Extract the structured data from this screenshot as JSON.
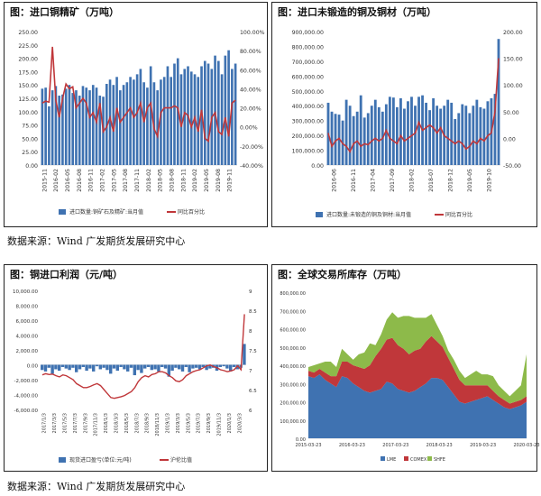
{
  "source_text": "数据来源：Wind  广发期货发展研究中心",
  "panels": [
    {
      "title": "图：进口铜精矿（万吨）",
      "chart_data": {
        "type": "bar+line",
        "y_left_ticks": [
          "0.00",
          "25.00",
          "50.00",
          "75.00",
          "100.00",
          "125.00",
          "150.00",
          "175.00",
          "200.00",
          "225.00",
          "250.00"
        ],
        "y_left_range": [
          0,
          250
        ],
        "y_right_ticks": [
          "-40.00%",
          "-20.00%",
          "0.00%",
          "20.00%",
          "40.00%",
          "60.00%",
          "80.00%",
          "100.00%"
        ],
        "y_right_range": [
          -40,
          100
        ],
        "x_labels": [
          "2015-11",
          "2016-02",
          "2016-05",
          "2016-08",
          "2016-11",
          "2017-02",
          "2017-05",
          "2017-08",
          "2017-11",
          "2018-02",
          "2018-05",
          "2018-08",
          "2018-11",
          "2019-02",
          "2019-05",
          "2019-08",
          "2019-11"
        ],
        "bars": [
          143,
          145,
          110,
          140,
          148,
          130,
          132,
          143,
          150,
          135,
          140,
          130,
          148,
          145,
          140,
          150,
          145,
          130,
          128,
          152,
          160,
          150,
          165,
          140,
          150,
          155,
          165,
          160,
          170,
          180,
          155,
          145,
          185,
          155,
          140,
          160,
          165,
          185,
          165,
          190,
          200,
          170,
          180,
          185,
          175,
          170,
          165,
          185,
          195,
          190,
          180,
          205,
          195,
          170,
          205,
          215,
          180,
          190
        ],
        "line": [
          25,
          27,
          26,
          84,
          28,
          10,
          30,
          45,
          40,
          42,
          20,
          25,
          30,
          25,
          10,
          15,
          5,
          25,
          -5,
          0,
          10,
          -5,
          20,
          5,
          10,
          15,
          20,
          10,
          15,
          25,
          5,
          20,
          25,
          -2,
          -10,
          15,
          20,
          20,
          20,
          22,
          20,
          0,
          15,
          12,
          0,
          10,
          -5,
          18,
          -12,
          -15,
          10,
          15,
          -5,
          -8,
          10,
          -10,
          25,
          28
        ],
        "legend": [
          "进口数量:铜矿石及精矿:当月值",
          "同比百分比"
        ]
      }
    },
    {
      "title": "图：进口未锻造的铜及铜材（万吨）",
      "chart_data": {
        "type": "bar+line",
        "y_left_ticks": [
          "0.00",
          "100,000.00",
          "200,000.00",
          "300,000.00",
          "400,000.00",
          "500,000.00",
          "600,000.00",
          "700,000.00",
          "800,000.00",
          "900,000.00"
        ],
        "y_left_range": [
          0,
          900000
        ],
        "y_right_ticks": [
          "-50.00",
          "0.00",
          "50.00",
          "100.00",
          "150.00",
          "200.00"
        ],
        "y_right_range": [
          -50,
          200
        ],
        "x_labels": [
          "2016-06",
          "2016-11",
          "2017-04",
          "2017-09",
          "2018-02",
          "2018-07",
          "2018-12",
          "2019-05",
          "2019-10"
        ],
        "bars": [
          420000,
          360000,
          345000,
          340000,
          300000,
          440000,
          400000,
          330000,
          360000,
          470000,
          320000,
          350000,
          400000,
          440000,
          390000,
          360000,
          410000,
          460000,
          455000,
          390000,
          450000,
          380000,
          430000,
          460000,
          400000,
          460000,
          470000,
          420000,
          370000,
          450000,
          400000,
          380000,
          400000,
          440000,
          420000,
          310000,
          350000,
          410000,
          400000,
          350000,
          400000,
          440000,
          390000,
          380000,
          430000,
          450000,
          480000,
          850000
        ],
        "line": [
          10,
          -15,
          -5,
          0,
          -10,
          -15,
          -25,
          -10,
          -5,
          -15,
          -10,
          -12,
          -5,
          0,
          -5,
          0,
          15,
          0,
          -5,
          -10,
          5,
          -5,
          0,
          5,
          10,
          30,
          15,
          20,
          25,
          20,
          10,
          20,
          5,
          0,
          -5,
          -10,
          -5,
          -10,
          -20,
          -15,
          -5,
          -10,
          0,
          -5,
          5,
          10,
          50,
          150
        ],
        "legend": [
          "进口数量:未锻造的铜及铜材:当月值",
          "同比百分比"
        ]
      }
    },
    {
      "title": "图：铜进口利润（元/吨）",
      "chart_data": {
        "type": "bar+line",
        "y_left_ticks": [
          "-6,000.00",
          "-4,000.00",
          "-2,000.00",
          "0.00",
          "2,000.00",
          "4,000.00",
          "6,000.00",
          "8,000.00",
          "10,000.00"
        ],
        "y_left_range": [
          -6000,
          10000
        ],
        "y_right_ticks": [
          "6",
          "6.5",
          "7",
          "7.5",
          "8",
          "8.5",
          "9"
        ],
        "y_right_range": [
          6,
          9
        ],
        "x_labels": [
          "2017/1/3",
          "2017/3/3",
          "2017/5/3",
          "2017/7/3",
          "2017/9/3",
          "2017/11/3",
          "2018/1/3",
          "2018/3/3",
          "2018/5/3",
          "2018/7/3",
          "2018/9/3",
          "2018/11/3",
          "2019/1/3",
          "2019/3/3",
          "2019/5/3",
          "2019/7/3",
          "2019/9/3",
          "2019/11/3",
          "2020/1/3",
          "2020/3/3"
        ],
        "bars_profit": [
          -700,
          -900,
          -400,
          -1200,
          -600,
          -800,
          -300,
          -500,
          -700,
          -400,
          -1000,
          -600,
          -300,
          -800,
          -500,
          -900,
          -200,
          -600,
          -400,
          -700,
          -1200,
          -500,
          -800,
          -300,
          -600,
          -900,
          -400,
          -1400,
          -700,
          -1100,
          -500,
          -300,
          -700,
          -600,
          -900,
          -300,
          -500,
          -1600,
          -800,
          -400,
          -600,
          -900,
          -300,
          -1000,
          -500,
          -400,
          -600,
          -300,
          -700,
          -500,
          -400,
          -800,
          -300,
          -200,
          -500,
          -900,
          -300,
          -600,
          -400,
          2800
        ],
        "line_usdcny": [
          6.87,
          6.9,
          6.88,
          6.89,
          6.85,
          6.82,
          6.87,
          6.85,
          6.8,
          6.75,
          6.65,
          6.6,
          6.55,
          6.55,
          6.58,
          6.62,
          6.65,
          6.6,
          6.5,
          6.4,
          6.3,
          6.28,
          6.3,
          6.32,
          6.35,
          6.4,
          6.45,
          6.55,
          6.7,
          6.8,
          6.85,
          6.82,
          6.88,
          6.9,
          6.95,
          6.95,
          6.92,
          6.85,
          6.8,
          6.72,
          6.7,
          6.75,
          6.85,
          6.9,
          6.95,
          6.98,
          7.0,
          7.05,
          7.1,
          7.12,
          7.08,
          7.05,
          7.0,
          6.98,
          6.95,
          6.97,
          7.0,
          7.1,
          7.0,
          8.4
        ],
        "legend": [
          "现货进口盈亏(单位:元/吨)",
          "沪伦比值"
        ]
      }
    },
    {
      "title": "图：全球交易所库存（万吨）",
      "chart_data": {
        "type": "stacked-area",
        "y_ticks": [
          "0.00",
          "100,000.00",
          "200,000.00",
          "300,000.00",
          "400,000.00",
          "500,000.00",
          "600,000.00",
          "700,000.00",
          "800,000.00"
        ],
        "y_range": [
          0,
          800000
        ],
        "x_labels": [
          "2015-03-23",
          "2016-03-23",
          "2017-03-23",
          "2018-03-23",
          "2019-03-23",
          "2020-03-23"
        ],
        "series": [
          {
            "name": "LME",
            "values": [
              340000,
              330000,
              350000,
              320000,
              300000,
              280000,
              340000,
              330000,
              300000,
              280000,
              260000,
              250000,
              260000,
              270000,
              310000,
              300000,
              270000,
              260000,
              250000,
              260000,
              280000,
              300000,
              330000,
              330000,
              320000,
              280000,
              240000,
              200000,
              190000,
              200000,
              210000,
              220000,
              230000,
              210000,
              190000,
              170000,
              160000,
              170000,
              180000,
              200000
            ]
          },
          {
            "name": "COMEX",
            "values": [
              30000,
              30000,
              30000,
              40000,
              40000,
              60000,
              80000,
              90000,
              100000,
              110000,
              120000,
              150000,
              190000,
              220000,
              230000,
              250000,
              240000,
              230000,
              210000,
              220000,
              210000,
              230000,
              230000,
              200000,
              180000,
              160000,
              140000,
              120000,
              100000,
              90000,
              80000,
              70000,
              60000,
              50000,
              40000,
              40000,
              30000,
              30000,
              30000,
              30000
            ]
          },
          {
            "name": "SHFE",
            "values": [
              20000,
              40000,
              30000,
              60000,
              80000,
              50000,
              70000,
              40000,
              30000,
              70000,
              90000,
              120000,
              60000,
              80000,
              110000,
              140000,
              150000,
              180000,
              210000,
              180000,
              170000,
              130000,
              120000,
              90000,
              60000,
              40000,
              50000,
              50000,
              40000,
              60000,
              80000,
              60000,
              60000,
              80000,
              60000,
              50000,
              40000,
              60000,
              80000,
              230000
            ]
          }
        ]
      }
    }
  ]
}
